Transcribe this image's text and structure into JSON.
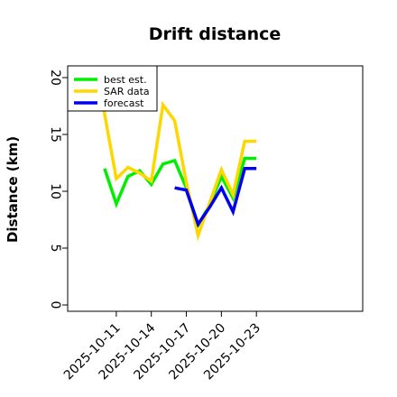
{
  "chart_data": {
    "type": "line",
    "title": "Drift distance",
    "xlabel": "",
    "ylabel": "Distance (km)",
    "ylim": [
      0,
      20
    ],
    "yticks": [
      0,
      5,
      10,
      15,
      20
    ],
    "xlim": [
      "2025-10-09",
      "2025-10-26"
    ],
    "xticks": [
      "2025-10-11",
      "2025-10-14",
      "2025-10-17",
      "2025-10-20",
      "2025-10-23"
    ],
    "x_tick_rotation_deg": 45,
    "y_tick_rotation_deg": 90,
    "grid": false,
    "legend": {
      "position": "top-left",
      "entries": [
        "best est.",
        "SAR data",
        "forecast"
      ]
    },
    "series": [
      {
        "name": "best est.",
        "color": "#00ee00",
        "x": [
          "2025-10-10",
          "2025-10-11",
          "2025-10-12",
          "2025-10-13",
          "2025-10-14",
          "2025-10-15",
          "2025-10-16",
          "2025-10-17",
          "2025-10-18",
          "2025-10-19",
          "2025-10-20",
          "2025-10-21",
          "2025-10-22",
          "2025-10-23"
        ],
        "values": [
          12.0,
          8.9,
          11.3,
          11.8,
          10.6,
          12.4,
          12.7,
          10.3,
          7.0,
          8.8,
          11.3,
          9.4,
          12.9,
          12.9
        ]
      },
      {
        "name": "SAR data",
        "color": "#ffd700",
        "x": [
          "2025-10-09",
          "2025-10-10",
          "2025-10-11",
          "2025-10-12",
          "2025-10-13",
          "2025-10-14",
          "2025-10-15",
          "2025-10-16",
          "2025-10-17",
          "2025-10-18",
          "2025-10-19",
          "2025-10-20",
          "2025-10-21",
          "2025-10-22",
          "2025-10-23"
        ],
        "values": [
          21.5,
          16.8,
          11.1,
          12.1,
          11.6,
          10.9,
          17.6,
          16.2,
          10.8,
          6.1,
          9.0,
          11.9,
          9.7,
          14.4,
          14.4
        ]
      },
      {
        "name": "forecast",
        "color": "#0000ee",
        "x": [
          "2025-10-16",
          "2025-10-17",
          "2025-10-18",
          "2025-10-19",
          "2025-10-20",
          "2025-10-21",
          "2025-10-22",
          "2025-10-23"
        ],
        "values": [
          10.3,
          10.1,
          7.1,
          8.6,
          10.3,
          8.2,
          12.0,
          12.0
        ]
      }
    ]
  }
}
